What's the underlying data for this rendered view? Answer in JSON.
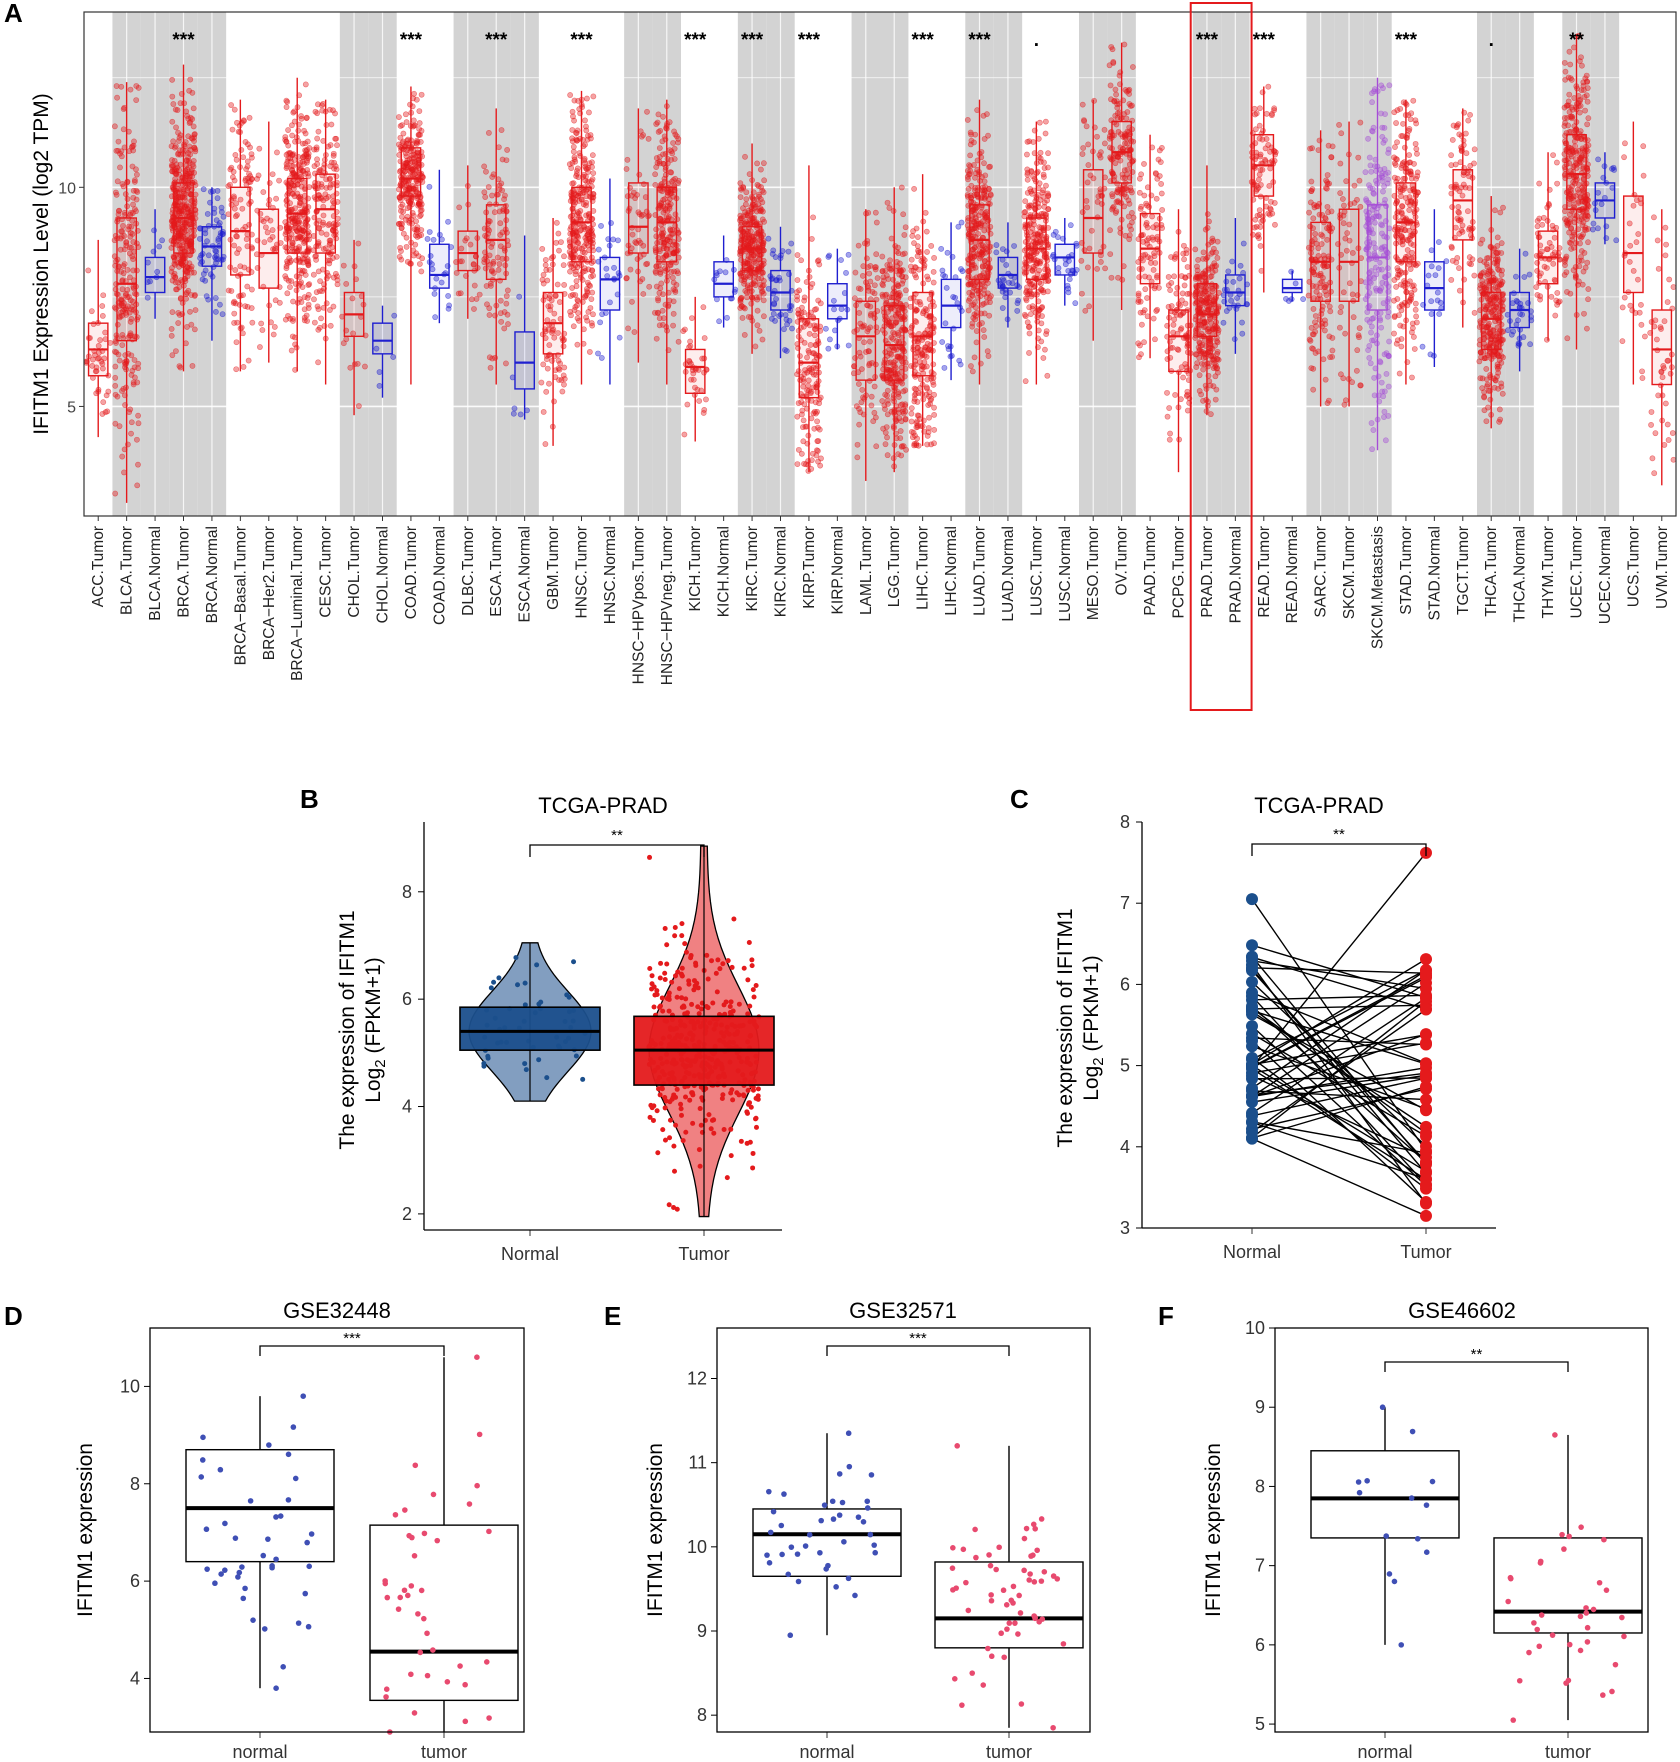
{
  "colors": {
    "tumor": "#e41a1c",
    "normal_a": "#1f1fd0",
    "metastasis": "#a64dd6",
    "normal_b": "#1b4f8c",
    "tumor_b": "#e41a1c",
    "normal_d": "#3f4fb5",
    "tumor_d": "#e84a6f",
    "highlight": "#e41a1c",
    "shade": "#d3d3d3"
  },
  "panels": {
    "A": {
      "letter": "A"
    },
    "B": {
      "letter": "B"
    },
    "C": {
      "letter": "C"
    },
    "D": {
      "letter": "D"
    },
    "E": {
      "letter": "E"
    },
    "F": {
      "letter": "F"
    }
  },
  "chart_data": [
    {
      "panel": "A",
      "type": "box",
      "ylabel": "IFITM1 Expression Level (log2 TPM)",
      "ylim": [
        2.5,
        14
      ],
      "yticks": [
        5,
        10
      ],
      "highlight_category": [
        "PRAD.Tumor",
        "PRAD.Normal"
      ],
      "groups": [
        {
          "label": "ACC.Tumor",
          "kind": "tumor",
          "q1": 5.7,
          "median": 6.3,
          "q3": 6.9,
          "min": 4.3,
          "max": 8.8,
          "n": 80,
          "sig": "",
          "shaded": false
        },
        {
          "label": "BLCA.Tumor",
          "kind": "tumor",
          "q1": 6.5,
          "median": 7.8,
          "q3": 9.3,
          "min": 2.8,
          "max": 12.4,
          "n": 410,
          "sig": "",
          "shaded": true
        },
        {
          "label": "BLCA.Normal",
          "kind": "normal",
          "q1": 7.6,
          "median": 7.95,
          "q3": 8.4,
          "min": 7.0,
          "max": 9.5,
          "n": 19,
          "sig": "",
          "shaded": true
        },
        {
          "label": "BRCA.Tumor",
          "kind": "tumor",
          "q1": 8.5,
          "median": 9.3,
          "q3": 10.1,
          "min": 5.8,
          "max": 12.8,
          "n": 1100,
          "sig": "***",
          "shaded": true
        },
        {
          "label": "BRCA.Normal",
          "kind": "normal",
          "q1": 8.2,
          "median": 8.65,
          "q3": 9.1,
          "min": 6.5,
          "max": 10.0,
          "n": 112,
          "sig": "",
          "shaded": true
        },
        {
          "label": "BRCA−Basal.Tumor",
          "kind": "tumor",
          "q1": 8.0,
          "median": 9.0,
          "q3": 10.0,
          "min": 5.8,
          "max": 12.0,
          "n": 190,
          "sig": "",
          "shaded": false
        },
        {
          "label": "BRCA−Her2.Tumor",
          "kind": "tumor",
          "q1": 7.7,
          "median": 8.5,
          "q3": 9.5,
          "min": 6.0,
          "max": 11.5,
          "n": 82,
          "sig": "",
          "shaded": false
        },
        {
          "label": "BRCA−Luminal.Tumor",
          "kind": "tumor",
          "q1": 8.5,
          "median": 9.4,
          "q3": 10.2,
          "min": 5.8,
          "max": 12.5,
          "n": 560,
          "sig": "",
          "shaded": false
        },
        {
          "label": "CESC.Tumor",
          "kind": "tumor",
          "q1": 8.5,
          "median": 9.5,
          "q3": 10.3,
          "min": 5.5,
          "max": 12.0,
          "n": 304,
          "sig": "",
          "shaded": false
        },
        {
          "label": "CHOL.Tumor",
          "kind": "tumor",
          "q1": 6.6,
          "median": 7.1,
          "q3": 7.6,
          "min": 4.8,
          "max": 8.8,
          "n": 36,
          "sig": "",
          "shaded": true
        },
        {
          "label": "CHOL.Normal",
          "kind": "normal",
          "q1": 6.2,
          "median": 6.5,
          "q3": 6.9,
          "min": 5.2,
          "max": 7.3,
          "n": 9,
          "sig": "",
          "shaded": true
        },
        {
          "label": "COAD.Tumor",
          "kind": "tumor",
          "q1": 9.8,
          "median": 10.2,
          "q3": 10.9,
          "min": 5.5,
          "max": 12.3,
          "n": 457,
          "sig": "***",
          "shaded": false
        },
        {
          "label": "COAD.Normal",
          "kind": "normal",
          "q1": 7.7,
          "median": 8.0,
          "q3": 8.7,
          "min": 6.9,
          "max": 10.4,
          "n": 41,
          "sig": "",
          "shaded": false
        },
        {
          "label": "DLBC.Tumor",
          "kind": "tumor",
          "q1": 8.1,
          "median": 8.5,
          "q3": 9.0,
          "min": 7.0,
          "max": 10.5,
          "n": 48,
          "sig": "",
          "shaded": true
        },
        {
          "label": "ESCA.Tumor",
          "kind": "tumor",
          "q1": 7.9,
          "median": 8.8,
          "q3": 9.6,
          "min": 5.5,
          "max": 11.8,
          "n": 184,
          "sig": "***",
          "shaded": true
        },
        {
          "label": "ESCA.Normal",
          "kind": "normal",
          "q1": 5.4,
          "median": 6.0,
          "q3": 6.7,
          "min": 4.7,
          "max": 8.9,
          "n": 11,
          "sig": "",
          "shaded": true
        },
        {
          "label": "GBM.Tumor",
          "kind": "tumor",
          "q1": 6.2,
          "median": 6.9,
          "q3": 7.6,
          "min": 4.1,
          "max": 9.3,
          "n": 153,
          "sig": "",
          "shaded": false
        },
        {
          "label": "HNSC.Tumor",
          "kind": "tumor",
          "q1": 8.3,
          "median": 9.2,
          "q3": 10.0,
          "min": 5.5,
          "max": 12.2,
          "n": 520,
          "sig": "***",
          "shaded": false
        },
        {
          "label": "HNSC.Normal",
          "kind": "normal",
          "q1": 7.2,
          "median": 7.9,
          "q3": 8.4,
          "min": 5.5,
          "max": 10.2,
          "n": 44,
          "sig": "",
          "shaded": false
        },
        {
          "label": "HNSC−HPVpos.Tumor",
          "kind": "tumor",
          "q1": 8.5,
          "median": 9.1,
          "q3": 10.1,
          "min": 6.0,
          "max": 11.8,
          "n": 97,
          "sig": "",
          "shaded": true
        },
        {
          "label": "HNSC−HPVneg.Tumor",
          "kind": "tumor",
          "q1": 8.3,
          "median": 9.2,
          "q3": 10.0,
          "min": 5.5,
          "max": 12.0,
          "n": 421,
          "sig": "",
          "shaded": true
        },
        {
          "label": "KICH.Tumor",
          "kind": "tumor",
          "q1": 5.3,
          "median": 5.9,
          "q3": 6.3,
          "min": 4.2,
          "max": 7.5,
          "n": 66,
          "sig": "***",
          "shaded": false
        },
        {
          "label": "KICH.Normal",
          "kind": "normal",
          "q1": 7.5,
          "median": 7.8,
          "q3": 8.3,
          "min": 6.8,
          "max": 8.9,
          "n": 25,
          "sig": "",
          "shaded": false
        },
        {
          "label": "KIRC.Tumor",
          "kind": "tumor",
          "q1": 8.1,
          "median": 8.6,
          "q3": 9.1,
          "min": 6.2,
          "max": 11.0,
          "n": 533,
          "sig": "***",
          "shaded": true
        },
        {
          "label": "KIRC.Normal",
          "kind": "normal",
          "q1": 7.2,
          "median": 7.6,
          "q3": 8.1,
          "min": 6.1,
          "max": 9.1,
          "n": 72,
          "sig": "",
          "shaded": true
        },
        {
          "label": "KIRP.Tumor",
          "kind": "tumor",
          "q1": 5.2,
          "median": 6.0,
          "q3": 7.0,
          "min": 3.5,
          "max": 10.5,
          "n": 290,
          "sig": "***",
          "shaded": false
        },
        {
          "label": "KIRP.Normal",
          "kind": "normal",
          "q1": 7.0,
          "median": 7.3,
          "q3": 7.8,
          "min": 6.3,
          "max": 8.6,
          "n": 32,
          "sig": "",
          "shaded": false
        },
        {
          "label": "LAML.Tumor",
          "kind": "tumor",
          "q1": 5.6,
          "median": 6.6,
          "q3": 7.4,
          "min": 3.3,
          "max": 9.5,
          "n": 173,
          "sig": "",
          "shaded": true
        },
        {
          "label": "LGG.Tumor",
          "kind": "tumor",
          "q1": 5.6,
          "median": 6.4,
          "q3": 7.3,
          "min": 3.5,
          "max": 10.0,
          "n": 516,
          "sig": "",
          "shaded": true
        },
        {
          "label": "LIHC.Tumor",
          "kind": "tumor",
          "q1": 5.7,
          "median": 6.6,
          "q3": 7.6,
          "min": 4.1,
          "max": 10.3,
          "n": 371,
          "sig": "***",
          "shaded": false
        },
        {
          "label": "LIHC.Normal",
          "kind": "normal",
          "q1": 6.8,
          "median": 7.3,
          "q3": 7.9,
          "min": 5.6,
          "max": 9.2,
          "n": 50,
          "sig": "",
          "shaded": false
        },
        {
          "label": "LUAD.Tumor",
          "kind": "tumor",
          "q1": 7.9,
          "median": 8.8,
          "q3": 9.6,
          "min": 5.5,
          "max": 12.0,
          "n": 515,
          "sig": "***",
          "shaded": true
        },
        {
          "label": "LUAD.Normal",
          "kind": "normal",
          "q1": 7.7,
          "median": 8.0,
          "q3": 8.4,
          "min": 6.8,
          "max": 9.2,
          "n": 59,
          "sig": "",
          "shaded": true
        },
        {
          "label": "LUSC.Tumor",
          "kind": "tumor",
          "q1": 7.9,
          "median": 8.6,
          "q3": 9.3,
          "min": 5.5,
          "max": 11.5,
          "n": 501,
          "sig": ".",
          "shaded": false
        },
        {
          "label": "LUSC.Normal",
          "kind": "normal",
          "q1": 8.0,
          "median": 8.4,
          "q3": 8.7,
          "min": 7.3,
          "max": 9.3,
          "n": 51,
          "sig": "",
          "shaded": false
        },
        {
          "label": "MESO.Tumor",
          "kind": "tumor",
          "q1": 8.5,
          "median": 9.3,
          "q3": 10.4,
          "min": 6.5,
          "max": 12.0,
          "n": 87,
          "sig": "",
          "shaded": true
        },
        {
          "label": "OV.Tumor",
          "kind": "tumor",
          "q1": 10.1,
          "median": 10.8,
          "q3": 11.5,
          "min": 7.2,
          "max": 13.3,
          "n": 303,
          "sig": "",
          "shaded": true
        },
        {
          "label": "PAAD.Tumor",
          "kind": "tumor",
          "q1": 7.8,
          "median": 8.6,
          "q3": 9.4,
          "min": 6.1,
          "max": 11.2,
          "n": 179,
          "sig": "",
          "shaded": false
        },
        {
          "label": "PCPG.Tumor",
          "kind": "tumor",
          "q1": 5.8,
          "median": 6.6,
          "q3": 7.2,
          "min": 3.5,
          "max": 9.5,
          "n": 182,
          "sig": "",
          "shaded": false
        },
        {
          "label": "PRAD.Tumor",
          "kind": "tumor",
          "q1": 6.6,
          "median": 7.1,
          "q3": 7.8,
          "min": 4.8,
          "max": 10.5,
          "n": 497,
          "sig": "***",
          "shaded": true
        },
        {
          "label": "PRAD.Normal",
          "kind": "normal",
          "q1": 7.3,
          "median": 7.6,
          "q3": 8.0,
          "min": 6.2,
          "max": 9.3,
          "n": 52,
          "sig": "",
          "shaded": true
        },
        {
          "label": "READ.Tumor",
          "kind": "tumor",
          "q1": 9.8,
          "median": 10.5,
          "q3": 11.2,
          "min": 7.6,
          "max": 12.3,
          "n": 166,
          "sig": "***",
          "shaded": false
        },
        {
          "label": "READ.Normal",
          "kind": "normal",
          "q1": 7.6,
          "median": 7.7,
          "q3": 7.9,
          "min": 7.4,
          "max": 8.1,
          "n": 10,
          "sig": "",
          "shaded": false
        },
        {
          "label": "SARC.Tumor",
          "kind": "tumor",
          "q1": 7.4,
          "median": 8.3,
          "q3": 9.2,
          "min": 5.0,
          "max": 11.3,
          "n": 259,
          "sig": "",
          "shaded": true
        },
        {
          "label": "SKCM.Tumor",
          "kind": "tumor",
          "q1": 7.4,
          "median": 8.3,
          "q3": 9.5,
          "min": 5.0,
          "max": 11.5,
          "n": 103,
          "sig": "",
          "shaded": true
        },
        {
          "label": "SKCM.Metastasis",
          "kind": "metastasis",
          "q1": 7.2,
          "median": 8.4,
          "q3": 9.6,
          "min": 4.0,
          "max": 12.5,
          "n": 368,
          "sig": "",
          "shaded": true
        },
        {
          "label": "STAD.Tumor",
          "kind": "tumor",
          "q1": 8.3,
          "median": 9.2,
          "q3": 10.1,
          "min": 5.5,
          "max": 12.0,
          "n": 415,
          "sig": "***",
          "shaded": false
        },
        {
          "label": "STAD.Normal",
          "kind": "normal",
          "q1": 7.2,
          "median": 7.7,
          "q3": 8.3,
          "min": 5.9,
          "max": 9.5,
          "n": 35,
          "sig": "",
          "shaded": false
        },
        {
          "label": "TGCT.Tumor",
          "kind": "tumor",
          "q1": 8.8,
          "median": 9.7,
          "q3": 10.4,
          "min": 6.8,
          "max": 11.8,
          "n": 150,
          "sig": "",
          "shaded": false
        },
        {
          "label": "THCA.Tumor",
          "kind": "tumor",
          "q1": 6.3,
          "median": 7.0,
          "q3": 7.6,
          "min": 4.5,
          "max": 9.8,
          "n": 505,
          "sig": ".",
          "shaded": true
        },
        {
          "label": "THCA.Normal",
          "kind": "normal",
          "q1": 6.8,
          "median": 7.2,
          "q3": 7.6,
          "min": 5.8,
          "max": 8.6,
          "n": 59,
          "sig": "",
          "shaded": true
        },
        {
          "label": "THYM.Tumor",
          "kind": "tumor",
          "q1": 7.8,
          "median": 8.4,
          "q3": 9.0,
          "min": 6.5,
          "max": 10.8,
          "n": 120,
          "sig": "",
          "shaded": false
        },
        {
          "label": "UCEC.Tumor",
          "kind": "tumor",
          "q1": 9.5,
          "median": 10.3,
          "q3": 11.2,
          "min": 6.3,
          "max": 13.5,
          "n": 545,
          "sig": "**",
          "shaded": true
        },
        {
          "label": "UCEC.Normal",
          "kind": "normal",
          "q1": 9.3,
          "median": 9.7,
          "q3": 10.1,
          "min": 8.7,
          "max": 10.8,
          "n": 35,
          "sig": "",
          "shaded": true
        },
        {
          "label": "UCS.Tumor",
          "kind": "tumor",
          "q1": 7.6,
          "median": 8.5,
          "q3": 9.8,
          "min": 5.5,
          "max": 11.5,
          "n": 57,
          "sig": "",
          "shaded": false
        },
        {
          "label": "UVM.Tumor",
          "kind": "tumor",
          "q1": 5.5,
          "median": 6.3,
          "q3": 7.2,
          "min": 3.2,
          "max": 9.5,
          "n": 80,
          "sig": "",
          "shaded": false
        }
      ]
    },
    {
      "panel": "B",
      "type": "violin-box",
      "title": "TCGA-PRAD",
      "ylabel_line1": "The expression of IFITM1",
      "ylabel_line2_base": "Log",
      "ylabel_line2_sub": "2",
      "ylabel_line2_rest": " (FPKM+1)",
      "ylim": [
        1.7,
        9.3
      ],
      "yticks": [
        2,
        4,
        6,
        8
      ],
      "categories": [
        "Normal",
        "Tumor"
      ],
      "significance": "**",
      "groups": [
        {
          "name": "Normal",
          "q1": 5.05,
          "median": 5.4,
          "q3": 5.85,
          "min": 4.1,
          "max": 7.05,
          "n": 52
        },
        {
          "name": "Tumor",
          "q1": 4.4,
          "median": 5.05,
          "q3": 5.68,
          "min": 1.95,
          "max": 8.85,
          "n": 499
        }
      ]
    },
    {
      "panel": "C",
      "type": "paired",
      "title": "TCGA-PRAD",
      "ylabel_line1": "The expression of IFITM1",
      "ylabel_line2_base": "Log",
      "ylabel_line2_sub": "2",
      "ylabel_line2_rest": " (FPKM+1)",
      "ylim": [
        3,
        8
      ],
      "yticks": [
        3,
        4,
        5,
        6,
        7,
        8
      ],
      "categories": [
        "Normal",
        "Tumor"
      ],
      "significance": "**",
      "pairs_n": 52,
      "normal_range": [
        4.1,
        7.05
      ],
      "tumor_range": [
        3.15,
        7.62
      ]
    },
    {
      "panel": "D",
      "type": "box-jitter",
      "title": "GSE32448",
      "ylabel": "IFITM1 expression",
      "ylim": [
        2.9,
        11.2
      ],
      "yticks": [
        4,
        6,
        8,
        10
      ],
      "categories": [
        "normal",
        "tumor"
      ],
      "significance": "***",
      "groups": [
        {
          "name": "normal",
          "q1": 6.4,
          "median": 7.5,
          "q3": 8.7,
          "min": 3.8,
          "max": 9.8,
          "n": 40
        },
        {
          "name": "tumor",
          "q1": 3.55,
          "median": 4.55,
          "q3": 7.15,
          "min": 2.9,
          "max": 10.6,
          "n": 40
        }
      ]
    },
    {
      "panel": "E",
      "type": "box-jitter",
      "title": "GSE32571",
      "ylabel": "IFITM1 expression",
      "ylim": [
        7.8,
        12.6
      ],
      "yticks": [
        8,
        9,
        10,
        11,
        12
      ],
      "categories": [
        "normal",
        "tumor"
      ],
      "significance": "***",
      "groups": [
        {
          "name": "normal",
          "q1": 9.65,
          "median": 10.15,
          "q3": 10.45,
          "min": 8.95,
          "max": 11.35,
          "n": 39
        },
        {
          "name": "tumor",
          "q1": 8.8,
          "median": 9.15,
          "q3": 9.82,
          "min": 7.85,
          "max": 11.2,
          "n": 59
        }
      ]
    },
    {
      "panel": "F",
      "type": "box-jitter",
      "title": "GSE46602",
      "ylabel": "IFITM1 expression",
      "ylim": [
        4.9,
        10.0
      ],
      "yticks": [
        5,
        6,
        7,
        8,
        9,
        10
      ],
      "categories": [
        "normal",
        "tumor"
      ],
      "significance": "**",
      "groups": [
        {
          "name": "normal",
          "q1": 7.35,
          "median": 7.85,
          "q3": 8.45,
          "min": 6.0,
          "max": 9.0,
          "n": 14
        },
        {
          "name": "tumor",
          "q1": 6.15,
          "median": 6.42,
          "q3": 7.35,
          "min": 5.05,
          "max": 8.65,
          "n": 36
        }
      ]
    }
  ]
}
